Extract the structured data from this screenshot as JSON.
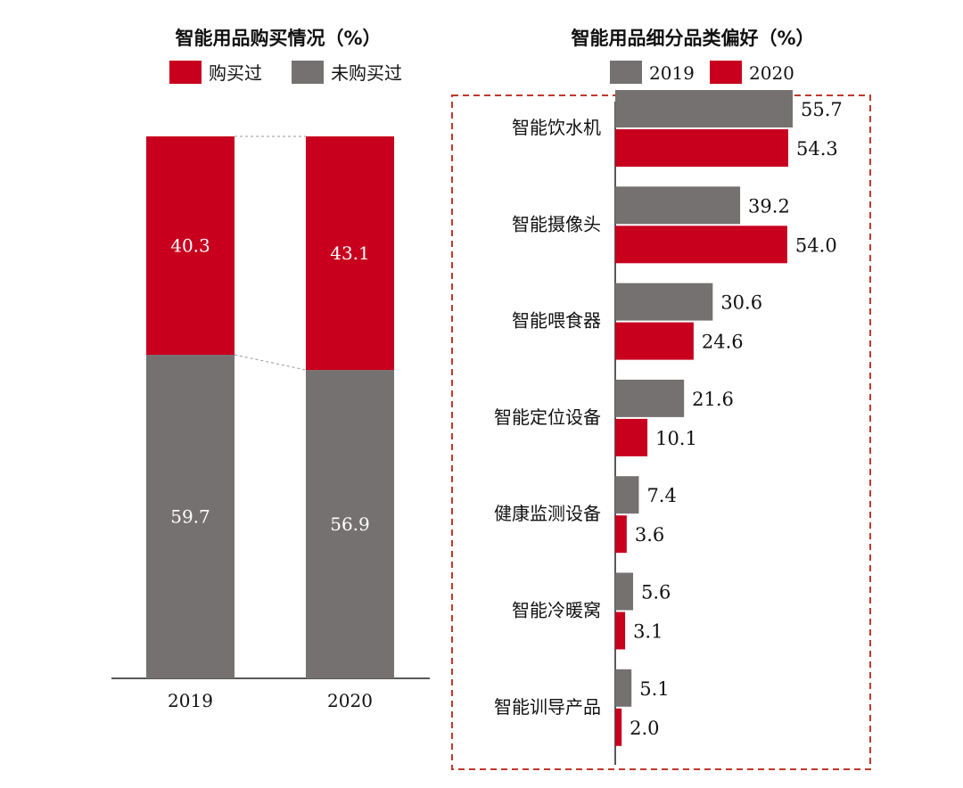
{
  "chart_data": [
    {
      "type": "bar",
      "stacked": true,
      "title": "智能用品购买情况（%）",
      "categories": [
        "2019",
        "2020"
      ],
      "series": [
        {
          "name": "购买过",
          "values": [
            40.3,
            43.1
          ]
        },
        {
          "name": "未购买过",
          "values": [
            59.7,
            56.9
          ]
        }
      ],
      "value_labels": [
        [
          "40.3",
          "43.1"
        ],
        [
          "59.7",
          "56.9"
        ]
      ],
      "ylim": [
        0,
        100
      ],
      "legend_position": "top",
      "grid": false
    },
    {
      "type": "bar",
      "orientation": "horizontal",
      "title": "智能用品细分品类偏好（%）",
      "categories": [
        "智能饮水机",
        "智能摄像头",
        "智能喂食器",
        "智能定位设备",
        "健康监测设备",
        "智能冷暖窝",
        "智能训导产品"
      ],
      "series": [
        {
          "name": "2019",
          "values": [
            55.7,
            39.2,
            30.6,
            21.6,
            7.4,
            5.6,
            5.1
          ]
        },
        {
          "name": "2020",
          "values": [
            54.3,
            54.0,
            24.6,
            10.1,
            3.6,
            3.1,
            2.0
          ]
        }
      ],
      "value_labels": [
        [
          "55.7",
          "39.2",
          "30.6",
          "21.6",
          "7.4",
          "5.6",
          "5.1"
        ],
        [
          "54.3",
          "54.0",
          "24.6",
          "10.1",
          "3.6",
          "3.1",
          "2.0"
        ]
      ],
      "legend_position": "top",
      "grid": false
    }
  ],
  "colors": {
    "red": "#c8001e",
    "gray": "#767171",
    "axis": "#222222",
    "border": "#c0392b"
  }
}
